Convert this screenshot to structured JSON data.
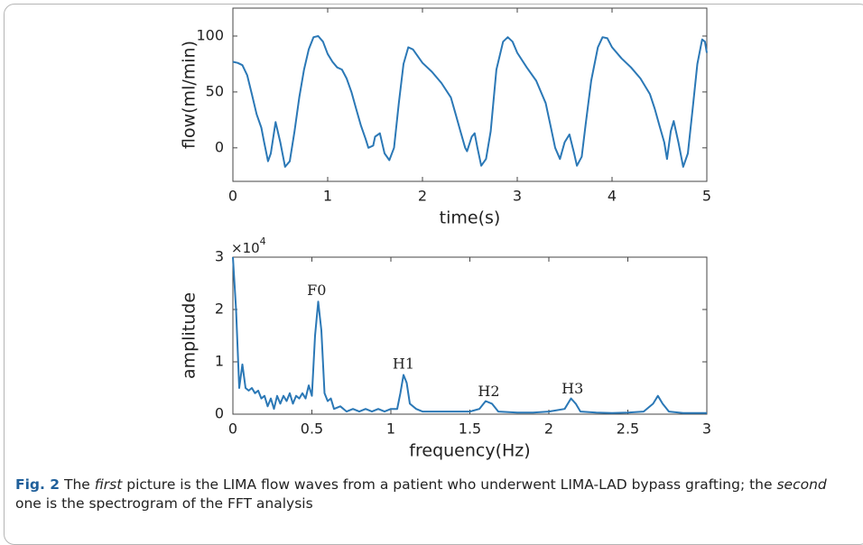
{
  "chart_data": [
    {
      "type": "line",
      "ylabel": "flow(ml/min)",
      "xlabel": "time(s)",
      "color": "#2b78b6",
      "grid": false,
      "xlim": [
        0,
        5
      ],
      "xticks": [
        0,
        1,
        2,
        3,
        4,
        5
      ],
      "ylim": [
        -30,
        125
      ],
      "yticks": [
        0,
        50,
        100
      ],
      "x": [
        0,
        0.05,
        0.1,
        0.15,
        0.2,
        0.25,
        0.3,
        0.33,
        0.37,
        0.4,
        0.45,
        0.5,
        0.55,
        0.6,
        0.65,
        0.7,
        0.75,
        0.8,
        0.85,
        0.9,
        0.95,
        1.0,
        1.05,
        1.1,
        1.15,
        1.2,
        1.25,
        1.3,
        1.35,
        1.4,
        1.43,
        1.48,
        1.5,
        1.55,
        1.6,
        1.65,
        1.7,
        1.75,
        1.8,
        1.85,
        1.9,
        1.95,
        2.0,
        2.1,
        2.2,
        2.3,
        2.35,
        2.4,
        2.45,
        2.47,
        2.52,
        2.55,
        2.58,
        2.62,
        2.67,
        2.72,
        2.78,
        2.85,
        2.9,
        2.95,
        3.0,
        3.1,
        3.2,
        3.3,
        3.35,
        3.4,
        3.45,
        3.5,
        3.55,
        3.6,
        3.63,
        3.68,
        3.72,
        3.78,
        3.85,
        3.9,
        3.95,
        4.0,
        4.1,
        4.2,
        4.3,
        4.4,
        4.45,
        4.5,
        4.55,
        4.58,
        4.62,
        4.65,
        4.7,
        4.75,
        4.8,
        4.85,
        4.9,
        4.95,
        4.98,
        5.0
      ],
      "values": [
        77,
        76,
        74,
        65,
        48,
        30,
        18,
        5,
        -12,
        -5,
        23,
        5,
        -17,
        -12,
        15,
        45,
        70,
        88,
        99,
        100,
        95,
        84,
        77,
        72,
        70,
        62,
        50,
        35,
        20,
        8,
        0,
        2,
        10,
        13,
        -5,
        -11,
        0,
        40,
        75,
        90,
        88,
        82,
        76,
        68,
        58,
        45,
        30,
        15,
        0,
        -3,
        10,
        13,
        0,
        -16,
        -10,
        15,
        70,
        95,
        99,
        95,
        85,
        72,
        60,
        40,
        20,
        0,
        -10,
        5,
        12,
        -5,
        -16,
        -8,
        20,
        60,
        90,
        99,
        98,
        90,
        80,
        72,
        62,
        48,
        35,
        20,
        5,
        -10,
        15,
        24,
        5,
        -17,
        -5,
        35,
        75,
        97,
        95,
        85
      ]
    },
    {
      "type": "line",
      "ylabel": "amplitude",
      "xlabel": "frequency(Hz)",
      "color": "#2b78b6",
      "grid": false,
      "multiplier": "×10",
      "multiplier_exponent": "4",
      "xlim": [
        0,
        3
      ],
      "xticks": [
        0,
        0.5,
        1,
        1.5,
        2,
        2.5,
        3
      ],
      "ylim": [
        0,
        3
      ],
      "yticks": [
        0,
        1,
        2,
        3
      ],
      "x": [
        0,
        0.02,
        0.04,
        0.06,
        0.08,
        0.1,
        0.12,
        0.14,
        0.16,
        0.18,
        0.2,
        0.22,
        0.24,
        0.26,
        0.28,
        0.3,
        0.32,
        0.34,
        0.36,
        0.38,
        0.4,
        0.42,
        0.44,
        0.46,
        0.48,
        0.5,
        0.52,
        0.54,
        0.56,
        0.58,
        0.6,
        0.62,
        0.64,
        0.68,
        0.72,
        0.76,
        0.8,
        0.84,
        0.88,
        0.92,
        0.96,
        1.0,
        1.04,
        1.06,
        1.08,
        1.1,
        1.12,
        1.16,
        1.2,
        1.3,
        1.4,
        1.5,
        1.56,
        1.6,
        1.64,
        1.68,
        1.8,
        1.9,
        2.0,
        2.1,
        2.14,
        2.17,
        2.2,
        2.3,
        2.4,
        2.5,
        2.6,
        2.66,
        2.69,
        2.72,
        2.76,
        2.85,
        3.0
      ],
      "values": [
        3,
        2.0,
        0.5,
        0.95,
        0.5,
        0.45,
        0.5,
        0.4,
        0.45,
        0.3,
        0.35,
        0.15,
        0.3,
        0.1,
        0.35,
        0.2,
        0.35,
        0.25,
        0.4,
        0.2,
        0.35,
        0.3,
        0.4,
        0.3,
        0.55,
        0.35,
        1.5,
        2.15,
        1.6,
        0.4,
        0.25,
        0.3,
        0.1,
        0.15,
        0.05,
        0.1,
        0.05,
        0.1,
        0.05,
        0.1,
        0.05,
        0.1,
        0.1,
        0.4,
        0.75,
        0.6,
        0.2,
        0.1,
        0.05,
        0.05,
        0.05,
        0.05,
        0.1,
        0.25,
        0.2,
        0.05,
        0.03,
        0.03,
        0.05,
        0.1,
        0.3,
        0.2,
        0.05,
        0.03,
        0.02,
        0.03,
        0.05,
        0.2,
        0.35,
        0.2,
        0.05,
        0.02,
        0.02
      ],
      "annotations": [
        {
          "text": "F0",
          "x": 0.53,
          "y": 2.35
        },
        {
          "text": "H1",
          "x": 1.08,
          "y": 0.95
        },
        {
          "text": "H2",
          "x": 1.62,
          "y": 0.42
        },
        {
          "text": "H3",
          "x": 2.15,
          "y": 0.47
        }
      ]
    }
  ],
  "caption": {
    "parts": [
      {
        "text": "Fig. 2",
        "style": "bold"
      },
      {
        "text": " The ",
        "style": "normal"
      },
      {
        "text": "first",
        "style": "italic"
      },
      {
        "text": " picture is the LIMA flow waves from a patient who underwent LIMA-LAD bypass grafting; the ",
        "style": "normal"
      },
      {
        "text": "second",
        "style": "italic"
      },
      {
        "text": " one is the spectrogram of the FFT analysis",
        "style": "normal"
      }
    ]
  }
}
